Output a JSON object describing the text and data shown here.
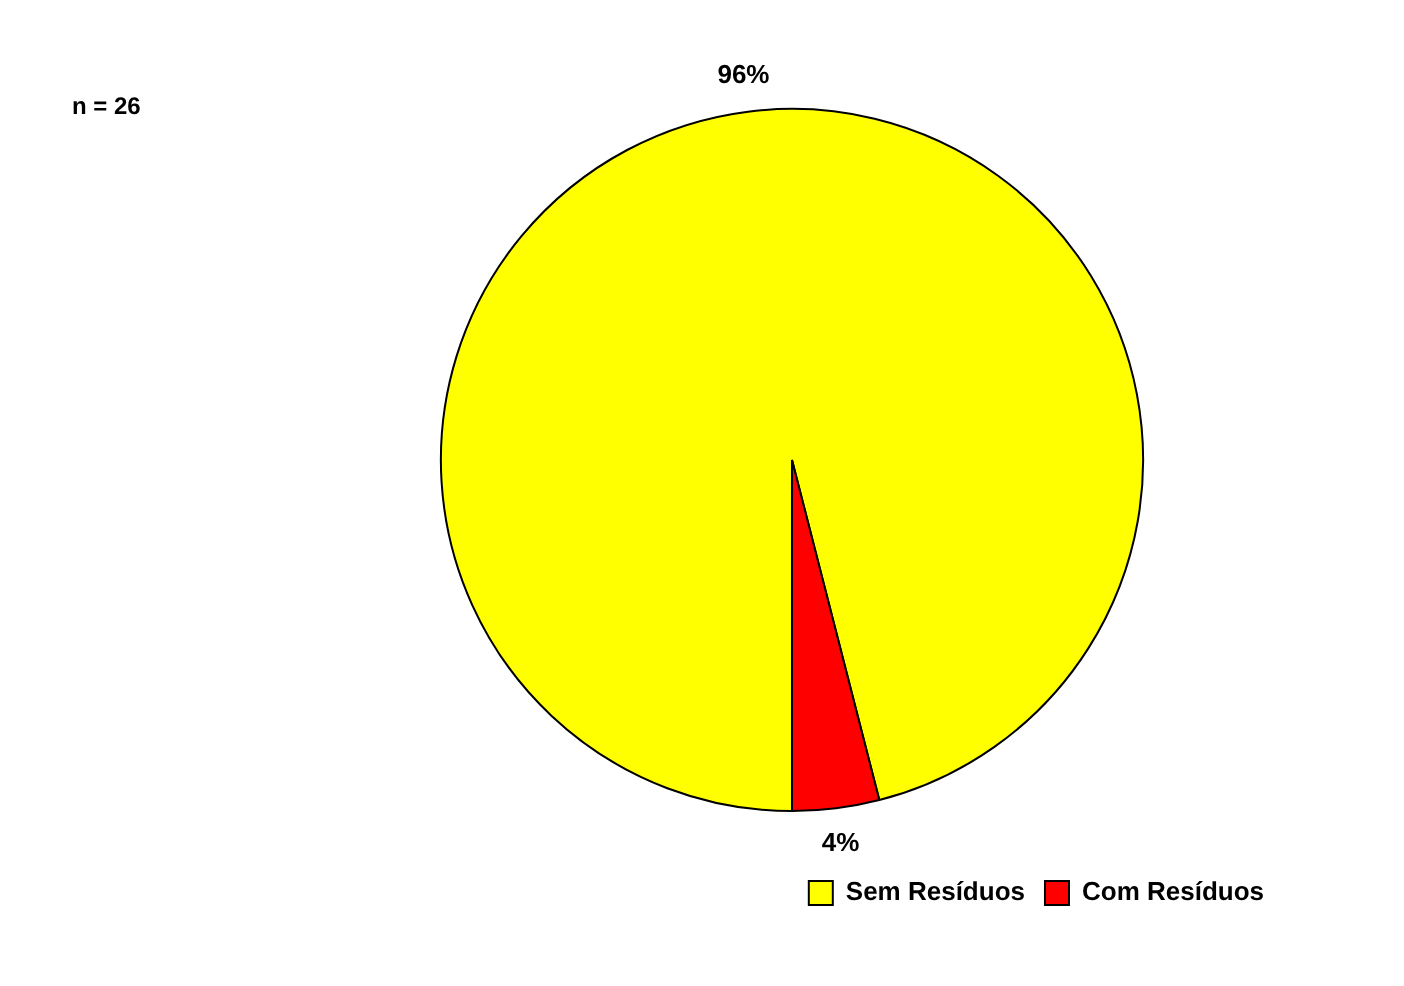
{
  "chart_data": {
    "type": "pie",
    "categories": [
      "Sem Resíduos",
      "Com Resíduos"
    ],
    "values": [
      96,
      4
    ],
    "colors": [
      "#ffff00",
      "#ff0000"
    ],
    "value_labels": [
      "96%",
      "4%"
    ],
    "annotations": [
      "n = 26"
    ],
    "legend": "bottom right"
  }
}
